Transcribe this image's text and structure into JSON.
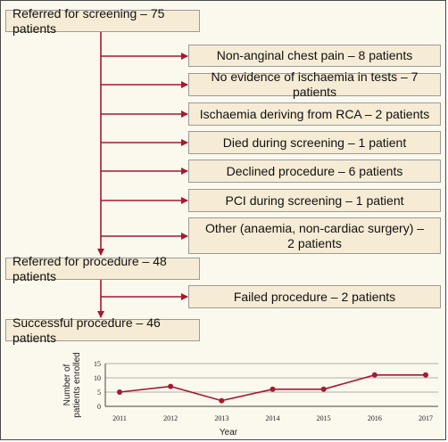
{
  "flow": {
    "referred_screening": "Referred for screening – 75 patients",
    "exclusions": [
      "Non-anginal chest pain – 8 patients",
      "No evidence of ischaemia in tests – 7 patients",
      "Ischaemia deriving from RCA – 2 patients",
      "Died during screening – 1 patient",
      "Declined procedure – 6 patients",
      "PCI during screening – 1 patient",
      "Other (anaemia, non-cardiac surgery) –",
      "2 patients"
    ],
    "referred_procedure": "Referred for procedure – 48 patients",
    "failed": "Failed procedure – 2 patients",
    "successful": "Successful procedure – 46 patients"
  },
  "colors": {
    "arrow": "#a6192e",
    "line": "#a6192e",
    "box_fill": "#f6ecd5",
    "background": "#fbf8ee"
  },
  "chart_data": {
    "type": "line",
    "xlabel": "Year",
    "ylabel_line1": "Number of",
    "ylabel_line2": "patients enrolled",
    "x": [
      "2011",
      "2012",
      "2013",
      "2014",
      "2015",
      "2016",
      "2017"
    ],
    "values": [
      5,
      7,
      2,
      6,
      6,
      11,
      11
    ],
    "yticks": [
      "0",
      "5",
      "10",
      "15"
    ],
    "ylim": [
      0,
      15
    ],
    "grid": true
  }
}
